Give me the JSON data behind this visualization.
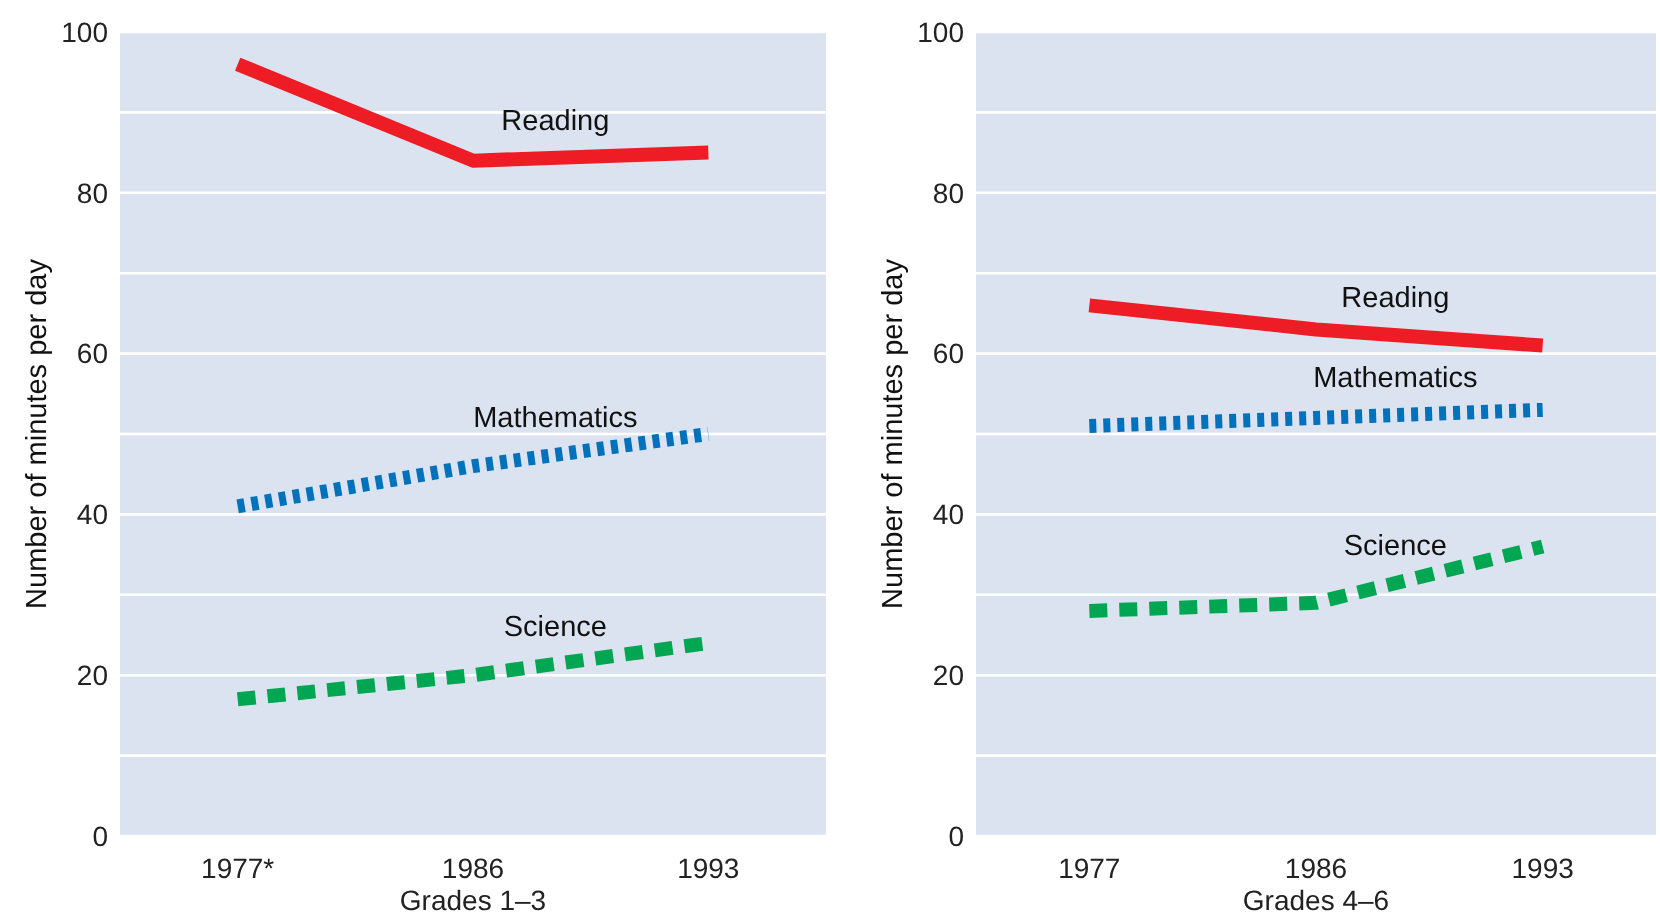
{
  "chart_data": [
    {
      "type": "line",
      "xlabel": "Grades 1–3",
      "ylabel": "Number of minutes per day",
      "categories": [
        "1977*",
        "1986",
        "1993"
      ],
      "ylim": [
        0,
        100
      ],
      "yticks": [
        0,
        {
          "value": 10,
          "label": null
        },
        20,
        {
          "value": 30,
          "label": null
        },
        40,
        {
          "value": 50,
          "label": null
        },
        60,
        {
          "value": 70,
          "label": null
        },
        80,
        {
          "value": 90,
          "label": null
        },
        100
      ],
      "grid": "y",
      "marker": "none",
      "series": [
        {
          "name": "Reading",
          "color": "#ee1c25",
          "line_style": "solid",
          "values": [
            96,
            84,
            85
          ]
        },
        {
          "name": "Mathematics",
          "color": "#0072bc",
          "line_style": "dotted",
          "values": [
            41,
            46,
            50
          ]
        },
        {
          "name": "Science",
          "color": "#00a651",
          "line_style": "dashed",
          "values": [
            17,
            20,
            24
          ]
        }
      ]
    },
    {
      "type": "line",
      "xlabel": "Grades 4–6",
      "ylabel": "Number of minutes per day",
      "categories": [
        "1977",
        "1986",
        "1993"
      ],
      "ylim": [
        0,
        100
      ],
      "yticks": [
        0,
        {
          "value": 10,
          "label": null
        },
        20,
        {
          "value": 30,
          "label": null
        },
        40,
        {
          "value": 50,
          "label": null
        },
        60,
        {
          "value": 70,
          "label": null
        },
        80,
        {
          "value": 90,
          "label": null
        },
        100
      ],
      "grid": "y",
      "marker": "none",
      "series": [
        {
          "name": "Reading",
          "color": "#ee1c25",
          "line_style": "solid",
          "values": [
            66,
            63,
            61
          ]
        },
        {
          "name": "Mathematics",
          "color": "#0072bc",
          "line_style": "dotted",
          "values": [
            51,
            52,
            53
          ]
        },
        {
          "name": "Science",
          "color": "#00a651",
          "line_style": "dashed",
          "values": [
            28,
            29,
            36
          ]
        }
      ]
    }
  ]
}
